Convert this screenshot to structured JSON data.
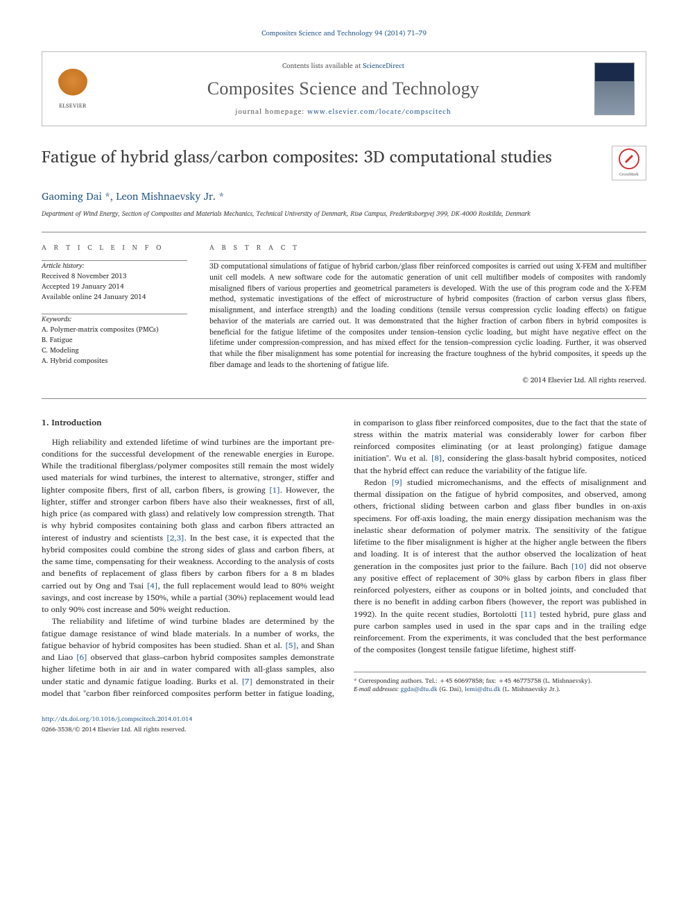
{
  "header_citation": "Composites Science and Technology 94 (2014) 71–79",
  "masthead": {
    "contents_prefix": "Contents lists available at ",
    "contents_link": "ScienceDirect",
    "journal": "Composites Science and Technology",
    "homepage_prefix": "journal homepage: ",
    "homepage_url": "www.elsevier.com/locate/compscitech",
    "publisher": "ELSEVIER"
  },
  "crossmark_label": "CrossMark",
  "title": "Fatigue of hybrid glass/carbon composites: 3D computational studies",
  "authors_html": "Gaoming Dai *, Leon Mishnaevsky Jr. *",
  "affiliation": "Department of Wind Energy, Section of Composites and Materials Mechanics, Technical University of Denmark, Risø Campus, Frederiksborgvej 399, DK-4000 Roskilde, Denmark",
  "article_info": {
    "label": "A R T I C L E   I N F O",
    "history_head": "Article history:",
    "received": "Received 8 November 2013",
    "accepted": "Accepted 19 January 2014",
    "online": "Available online 24 January 2014",
    "keywords_head": "Keywords:",
    "keywords": [
      "A. Polymer-matrix composites (PMCs)",
      "B. Fatigue",
      "C. Modeling",
      "A. Hybrid composites"
    ]
  },
  "abstract": {
    "label": "A B S T R A C T",
    "text": "3D computational simulations of fatigue of hybrid carbon/glass fiber reinforced composites is carried out using X-FEM and multifiber unit cell models. A new software code for the automatic generation of unit cell multifiber models of composites with randomly misaligned fibers of various properties and geometrical parameters is developed. With the use of this program code and the X-FEM method, systematic investigations of the effect of microstructure of hybrid composites (fraction of carbon versus glass fibers, misalignment, and interface strength) and the loading conditions (tensile versus compression cyclic loading effects) on fatigue behavior of the materials are carried out. It was demonstrated that the higher fraction of carbon fibers in hybrid composites is beneficial for the fatigue lifetime of the composites under tension–tension cyclic loading, but might have negative effect on the lifetime under compression-compression, and has mixed effect for the tension–compression cyclic loading. Further, it was observed that while the fiber misalignment has some potential for increasing the fracture toughness of the hybrid composites, it speeds up the fiber damage and leads to the shortening of fatigue life.",
    "copyright": "© 2014 Elsevier Ltd. All rights reserved."
  },
  "section_heading": "1. Introduction",
  "para1": "High reliability and extended lifetime of wind turbines are the important pre-conditions for the successful development of the renewable energies in Europe. While the traditional fiberglass/polymer composites still remain the most widely used materials for wind turbines, the interest to alternative, stronger, stiffer and lighter composite fibers, first of all, carbon fibers, is growing ",
  "ref1": "[1]",
  "para1b": ". However, the lighter, stiffer and stronger carbon fibers have also their weaknesses, first of all, high price (as compared with glass) and relatively low compression strength. That is why hybrid composites containing both glass and carbon fibers attracted an interest of industry and scientists ",
  "ref23": "[2,3]",
  "para1c": ". In the best case, it is expected that the hybrid composites could combine the strong sides of glass and carbon fibers, at the same time, compensating for their weakness. According to the analysis of costs and benefits of replacement of glass fibers by carbon fibers for a 8 m blades carried out by Ong and Tsai ",
  "ref4": "[4]",
  "para1d": ", the full replacement would lead to 80% weight savings, and cost increase by 150%, while a partial (30%) replacement would lead to only 90% cost increase and 50% weight reduction.",
  "para2a": "The reliability and lifetime of wind turbine blades are determined by the fatigue damage resistance of wind blade materials. In a number of works, the fatigue behavior of hybrid composites has been studied. Shan et al. ",
  "ref5": "[5]",
  "para2b": ", and Shan and Liao ",
  "ref6": "[6]",
  "para2c": " observed that glass–carbon hybrid composites samples demonstrate higher lifetime both in air and in water compared with all-glass samples, also under static and dynamic fatigue loading. Burks et al. ",
  "ref7": "[7]",
  "para2d": " demonstrated in their model that \"carbon fiber reinforced composites perform better in fatigue loading, in comparison to glass fiber reinforced composites, due to the fact that the state of stress within the matrix material was considerably lower for carbon fiber reinforced composites eliminating (or at least prolonging) fatigue damage initiation\". Wu et al. ",
  "ref8": "[8]",
  "para2e": ", considering the glass-basalt hybrid composites, noticed that the hybrid effect can reduce the variability of the fatigue life.",
  "para3a": "Redon ",
  "ref9": "[9]",
  "para3b": " studied micromechanisms, and the effects of misalignment and thermal dissipation on the fatigue of hybrid composites, and observed, among others, frictional sliding between carbon and glass fiber bundles in on-axis specimens. For off-axis loading, the main energy dissipation mechanism was the inelastic shear deformation of polymer matrix. The sensitivity of the fatigue lifetime to the fiber misalignment is higher at the higher angle between the fibers and loading. It is of interest that the author observed the localization of heat generation in the composites just prior to the failure. Bach ",
  "ref10": "[10]",
  "para3c": " did not observe any positive effect of replacement of 30% glass by carbon fibers in glass fiber reinforced polyesters, either as coupons or in bolted joints, and concluded that there is no benefit in adding carbon fibers (however, the report was published in 1992). In the quite recent studies, Bortolotti ",
  "ref11": "[11]",
  "para3d": " tested hybrid, pure glass and pure carbon samples used in used in the spar caps and in the trailing edge reinforcement. From the experiments, it was concluded that the best performance of the composites (longest tensile fatigue lifetime, highest stiff-",
  "footnotes": {
    "corr": "* Corresponding authors. Tel.: +45 60697858; fax: +45 46775758 (L. Mishnaevsky).",
    "emails_label": "E-mail addresses: ",
    "email1": "ggda@dtu.dk",
    "email1_who": " (G. Dai), ",
    "email2": "lemi@dtu.dk",
    "email2_who": " (L. Mishnaevsky Jr.)."
  },
  "footer": {
    "doi_url": "http://dx.doi.org/10.1016/j.compscitech.2014.01.014",
    "issn_line": "0266-3538/© 2014 Elsevier Ltd. All rights reserved."
  }
}
